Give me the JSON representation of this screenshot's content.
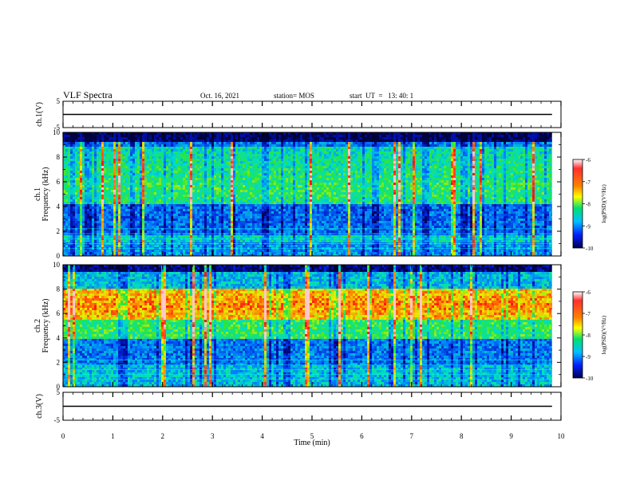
{
  "header": {
    "title": "VLF Spectra",
    "date": "Oct. 16, 2021",
    "station": "station= MOS",
    "start_ut": "start  UT  =   13: 40: 1"
  },
  "colors": {
    "spectrum_low": "#000066",
    "spectrum_mid_low": "#0044ff",
    "spectrum_mid": "#00e0a0",
    "spectrum_mid_high": "#ffff00",
    "spectrum_high": "#ff0000",
    "spectrum_peak": "#ffffff"
  },
  "chart_data": [
    {
      "type": "line",
      "name": "ch1-waveform",
      "ylabel": "ch.1(V)",
      "ylim": [
        -5,
        5
      ],
      "y_ticks": [
        "5",
        "-5"
      ],
      "series": [
        {
          "x": [
            0,
            9.82
          ],
          "y": [
            0,
            0
          ]
        }
      ]
    },
    {
      "type": "heatmap",
      "name": "ch1-spectrogram",
      "ylabel": "ch.1",
      "ylabel2": "Frequency (kHz)",
      "ylim": [
        0,
        10
      ],
      "y_ticks": [
        "0",
        "2",
        "4",
        "6",
        "8",
        "10"
      ],
      "xlim": [
        0,
        10
      ],
      "colorbar": {
        "label": "log(PSD)(V²/Hz)",
        "range": [
          -10,
          -6
        ],
        "ticks": [
          "-6",
          "-7",
          "-8",
          "-9",
          "-10"
        ]
      }
    },
    {
      "type": "heatmap",
      "name": "ch2-spectrogram",
      "ylabel": "ch.2",
      "ylabel2": "Frequency (kHz)",
      "ylim": [
        0,
        10
      ],
      "y_ticks": [
        "0",
        "2",
        "4",
        "6",
        "8",
        "10"
      ],
      "xlim": [
        0,
        10
      ],
      "colorbar": {
        "label": "log(PSD)(V²/Hz)",
        "range": [
          -10,
          -6
        ],
        "ticks": [
          "-6",
          "-7",
          "-8",
          "-9",
          "-10"
        ]
      }
    },
    {
      "type": "line",
      "name": "ch3-waveform",
      "ylabel": "ch.3(V)",
      "ylim": [
        -5,
        5
      ],
      "y_ticks": [
        "5",
        "-5"
      ],
      "xlabel": "Time  (min)",
      "xlim": [
        0,
        10
      ],
      "x_ticks": [
        "0",
        "1",
        "2",
        "3",
        "4",
        "5",
        "6",
        "7",
        "8",
        "9",
        "10"
      ],
      "series": [
        {
          "x": [
            0,
            9.82
          ],
          "y": [
            0,
            0
          ]
        }
      ]
    }
  ]
}
